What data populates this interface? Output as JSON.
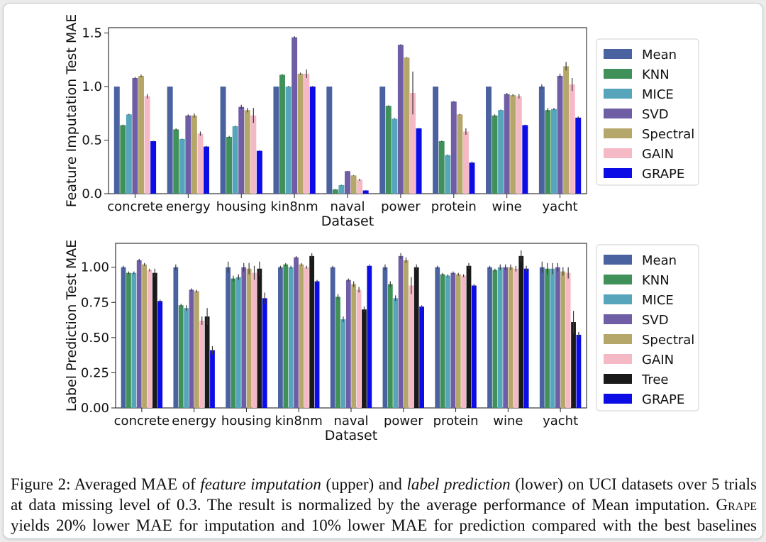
{
  "colors": {
    "Mean": "#4a62a0",
    "KNN": "#3f9159",
    "MICE": "#57a5bb",
    "SVD": "#6f5ea5",
    "Spectral": "#b5a66a",
    "GAIN": "#f5b8c5",
    "Tree": "#1a1a1a",
    "GRAPE": "#0c0ce6"
  },
  "chart_data": [
    {
      "type": "bar",
      "title": "",
      "xlabel": "Dataset",
      "ylabel": "Feature Imputation Test MAE",
      "ylim": [
        0,
        1.55
      ],
      "yticks": [
        "0.0",
        "0.5",
        "1.0",
        "1.5"
      ],
      "ytick_values": [
        0,
        0.5,
        1.0,
        1.5
      ],
      "grid": false,
      "legend_position": "right",
      "categories": [
        "concrete",
        "energy",
        "housing",
        "kin8nm",
        "naval",
        "power",
        "protein",
        "wine",
        "yacht"
      ],
      "series": [
        {
          "name": "Mean",
          "values": [
            1.0,
            1.0,
            1.0,
            1.0,
            1.0,
            1.0,
            1.0,
            1.0,
            1.0
          ],
          "errors": [
            0,
            0,
            0,
            0,
            0,
            0,
            0,
            0,
            0.02
          ]
        },
        {
          "name": "KNN",
          "values": [
            0.64,
            0.6,
            0.53,
            1.11,
            0.04,
            0.82,
            0.49,
            0.73,
            0.78
          ],
          "errors": [
            0.005,
            0.01,
            0.01,
            0.005,
            0.003,
            0.005,
            0.005,
            0.01,
            0.02
          ]
        },
        {
          "name": "MICE",
          "values": [
            0.74,
            0.51,
            0.63,
            1.0,
            0.08,
            0.7,
            0.36,
            0.78,
            0.79
          ],
          "errors": [
            0.005,
            0.005,
            0.005,
            0.005,
            0.003,
            0.005,
            0.005,
            0.005,
            0.01
          ]
        },
        {
          "name": "SVD",
          "values": [
            1.08,
            0.73,
            0.81,
            1.46,
            0.21,
            1.39,
            0.86,
            0.93,
            1.1
          ],
          "errors": [
            0.01,
            0.01,
            0.02,
            0.01,
            0.003,
            0.005,
            0.005,
            0.01,
            0.02
          ]
        },
        {
          "name": "Spectral",
          "values": [
            1.1,
            0.73,
            0.78,
            1.12,
            0.17,
            1.27,
            0.74,
            0.92,
            1.19
          ],
          "errors": [
            0.01,
            0.02,
            0.02,
            0.01,
            0.003,
            0.005,
            0.005,
            0.01,
            0.04
          ]
        },
        {
          "name": "GAIN",
          "values": [
            0.91,
            0.56,
            0.73,
            1.12,
            0.13,
            0.94,
            0.58,
            0.91,
            1.02
          ],
          "errors": [
            0.02,
            0.02,
            0.07,
            0.04,
            0.01,
            0.2,
            0.03,
            0.02,
            0.06
          ]
        },
        {
          "name": "GRAPE",
          "values": [
            0.49,
            0.44,
            0.4,
            1.0,
            0.03,
            0.61,
            0.29,
            0.64,
            0.71
          ],
          "errors": [
            0.005,
            0.005,
            0.005,
            0.005,
            0.002,
            0.005,
            0.01,
            0.005,
            0.01
          ]
        }
      ]
    },
    {
      "type": "bar",
      "title": "",
      "xlabel": "Dataset",
      "ylabel": "Label Prediction Test MAE",
      "ylim": [
        0,
        1.17
      ],
      "yticks": [
        "0.00",
        "0.25",
        "0.50",
        "0.75",
        "1.00"
      ],
      "ytick_values": [
        0,
        0.25,
        0.5,
        0.75,
        1.0
      ],
      "grid": false,
      "legend_position": "right",
      "categories": [
        "concrete",
        "energy",
        "housing",
        "kin8nm",
        "naval",
        "power",
        "protein",
        "wine",
        "yacht"
      ],
      "series": [
        {
          "name": "Mean",
          "values": [
            1.0,
            1.0,
            1.0,
            1.0,
            1.0,
            1.0,
            1.0,
            1.0,
            1.0
          ],
          "errors": [
            0.01,
            0.02,
            0.04,
            0.01,
            0.01,
            0.02,
            0.01,
            0.01,
            0.04
          ]
        },
        {
          "name": "KNN",
          "values": [
            0.96,
            0.73,
            0.92,
            1.02,
            0.79,
            0.88,
            0.95,
            0.98,
            0.99
          ],
          "errors": [
            0.01,
            0.01,
            0.02,
            0.01,
            0.02,
            0.02,
            0.01,
            0.01,
            0.04
          ]
        },
        {
          "name": "MICE",
          "values": [
            0.96,
            0.71,
            0.93,
            1.0,
            0.63,
            0.78,
            0.94,
            1.0,
            0.99
          ],
          "errors": [
            0.01,
            0.02,
            0.02,
            0.01,
            0.02,
            0.02,
            0.01,
            0.02,
            0.04
          ]
        },
        {
          "name": "SVD",
          "values": [
            1.05,
            0.84,
            1.0,
            1.07,
            0.91,
            1.08,
            0.96,
            1.0,
            1.0
          ],
          "errors": [
            0.01,
            0.01,
            0.03,
            0.01,
            0.01,
            0.02,
            0.01,
            0.02,
            0.03
          ]
        },
        {
          "name": "Spectral",
          "values": [
            1.02,
            0.83,
            0.99,
            1.02,
            0.88,
            1.05,
            0.95,
            1.0,
            0.97
          ],
          "errors": [
            0.01,
            0.01,
            0.04,
            0.01,
            0.02,
            0.02,
            0.01,
            0.02,
            0.03
          ]
        },
        {
          "name": "GAIN",
          "values": [
            0.98,
            0.62,
            0.96,
            1.0,
            0.84,
            0.87,
            0.94,
            0.99,
            0.96
          ],
          "errors": [
            0.01,
            0.03,
            0.05,
            0.01,
            0.02,
            0.06,
            0.01,
            0.02,
            0.04
          ]
        },
        {
          "name": "Tree",
          "values": [
            0.96,
            0.65,
            0.99,
            1.08,
            0.7,
            1.0,
            1.01,
            1.08,
            0.61
          ],
          "errors": [
            0.03,
            0.06,
            0.05,
            0.02,
            0.02,
            0.02,
            0.02,
            0.04,
            0.08
          ]
        },
        {
          "name": "GRAPE",
          "values": [
            0.76,
            0.41,
            0.78,
            0.9,
            1.01,
            0.72,
            0.87,
            0.99,
            0.52
          ],
          "errors": [
            0.01,
            0.03,
            0.04,
            0.01,
            0.01,
            0.01,
            0.01,
            0.02,
            0.02
          ]
        }
      ]
    }
  ],
  "caption": {
    "label": "Figure 2:",
    "t1": " Averaged MAE of ",
    "em1": "feature imputation",
    "t2": " (upper) and ",
    "em2": "label prediction",
    "t3": " (lower) on UCI datasets over 5 trials at data missing level of 0.3. The result is normalized by the average performance of Mean imputation. ",
    "method": "Grape",
    "t4": " yields 20% lower MAE for imputation and 10% lower MAE for prediction compared with the best baselines (KNN for imputation and MICE for prediction)."
  }
}
